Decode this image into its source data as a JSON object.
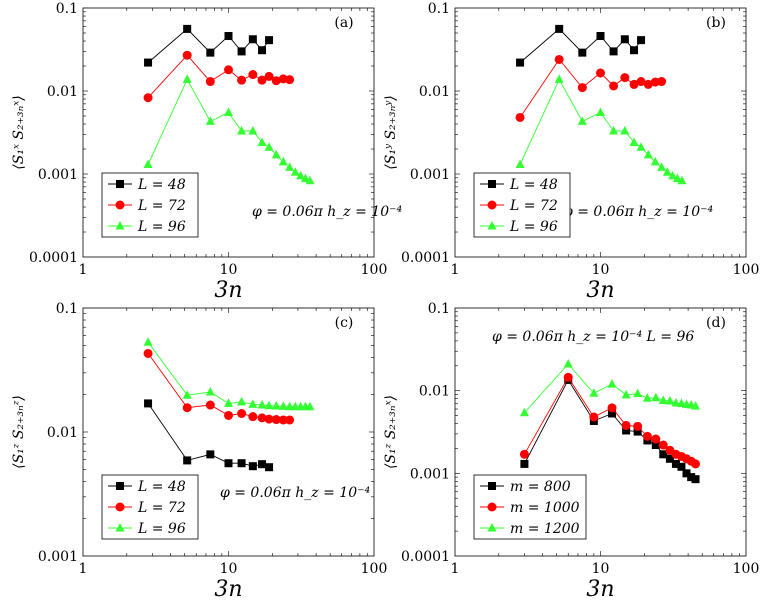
{
  "colors": {
    "black": "#000000",
    "red": "#ff0000",
    "green": "#33ff33"
  },
  "chart_data": [
    {
      "type": "line",
      "panel_label": "(a)",
      "xscale": "log",
      "yscale": "log",
      "xlim": [
        1,
        100
      ],
      "ylim": [
        0.0001,
        0.1
      ],
      "xlabel": "3n",
      "ylabel": "⟨S₁ˣ S₂₊₃ₙˣ⟩",
      "xticks": [
        "1",
        "10",
        "100"
      ],
      "yticks": [
        "0.0001",
        "0.001",
        "0.01",
        "0.1"
      ],
      "annotation": "φ = 0.06π  h_z = 10⁻⁴",
      "legend_position": "bottom-left",
      "series": [
        {
          "name": "L = 48",
          "marker": "square",
          "color": "black",
          "x": [
            2.8,
            5.2,
            7.5,
            10,
            12.3,
            14.7,
            17,
            19
          ],
          "y": [
            0.022,
            0.056,
            0.029,
            0.046,
            0.03,
            0.042,
            0.031,
            0.041
          ]
        },
        {
          "name": "L = 72",
          "marker": "circle",
          "color": "red",
          "x": [
            2.8,
            5.2,
            7.5,
            10,
            12.3,
            14.7,
            17,
            19,
            21.3,
            23.8,
            26.3
          ],
          "y": [
            0.0083,
            0.027,
            0.013,
            0.018,
            0.0135,
            0.0158,
            0.0135,
            0.015,
            0.0133,
            0.014,
            0.0137
          ]
        },
        {
          "name": "L = 96",
          "marker": "triangle",
          "color": "green",
          "x": [
            2.8,
            5.2,
            7.5,
            10,
            12.3,
            14.7,
            17,
            19,
            21.3,
            23.8,
            26.3,
            28.8,
            31.3,
            33.8,
            36.3
          ],
          "y": [
            0.0013,
            0.0138,
            0.0043,
            0.0055,
            0.0033,
            0.0033,
            0.0024,
            0.0021,
            0.0017,
            0.0014,
            0.0012,
            0.00105,
            0.00095,
            0.00088,
            0.00083
          ]
        }
      ]
    },
    {
      "type": "line",
      "panel_label": "(b)",
      "xscale": "log",
      "yscale": "log",
      "xlim": [
        1,
        100
      ],
      "ylim": [
        0.0001,
        0.1
      ],
      "xlabel": "3n",
      "ylabel": "⟨S₁ʸ S₂₊₃ₙʸ⟩",
      "xticks": [
        "1",
        "10",
        "100"
      ],
      "yticks": [
        "0.0001",
        "0.001",
        "0.01",
        "0.1"
      ],
      "annotation": "φ = 0.06π  h_z = 10⁻⁴",
      "legend_position": "bottom-left",
      "series": [
        {
          "name": "L = 48",
          "marker": "square",
          "color": "black",
          "x": [
            2.8,
            5.2,
            7.5,
            10,
            12.3,
            14.7,
            17,
            19
          ],
          "y": [
            0.022,
            0.056,
            0.029,
            0.046,
            0.03,
            0.042,
            0.031,
            0.041
          ]
        },
        {
          "name": "L = 72",
          "marker": "circle",
          "color": "red",
          "x": [
            2.8,
            5.2,
            7.5,
            10,
            12.3,
            14.7,
            17,
            19,
            21.3,
            23.8,
            26.3
          ],
          "y": [
            0.0048,
            0.024,
            0.011,
            0.0165,
            0.0115,
            0.0145,
            0.012,
            0.013,
            0.012,
            0.0128,
            0.013
          ]
        },
        {
          "name": "L = 96",
          "marker": "triangle",
          "color": "green",
          "x": [
            2.8,
            5.2,
            7.5,
            10,
            12.3,
            14.7,
            17,
            19,
            21.3,
            23.8,
            26.3,
            28.8,
            31.3,
            33.8,
            36.3
          ],
          "y": [
            0.0013,
            0.0138,
            0.0043,
            0.0055,
            0.0033,
            0.0033,
            0.0024,
            0.0021,
            0.0017,
            0.0014,
            0.0012,
            0.00105,
            0.00095,
            0.00088,
            0.00083
          ]
        }
      ]
    },
    {
      "type": "line",
      "panel_label": "(c)",
      "xscale": "log",
      "yscale": "log",
      "xlim": [
        1,
        100
      ],
      "ylim": [
        0.001,
        0.1
      ],
      "xlabel": "3n",
      "ylabel": "⟨S₁ᶻ S₂₊₃ₙᶻ⟩",
      "xticks": [
        "1",
        "10",
        "100"
      ],
      "yticks": [
        "0.001",
        "0.01",
        "0.1"
      ],
      "annotation": "φ = 0.06π  h_z = 10⁻⁴",
      "legend_position": "bottom-left",
      "series": [
        {
          "name": "L = 48",
          "marker": "square",
          "color": "black",
          "x": [
            2.8,
            5.2,
            7.5,
            10,
            12.3,
            14.7,
            17,
            19
          ],
          "y": [
            0.017,
            0.0059,
            0.0066,
            0.0056,
            0.0056,
            0.0053,
            0.0055,
            0.0052
          ]
        },
        {
          "name": "L = 72",
          "marker": "circle",
          "color": "red",
          "x": [
            2.8,
            5.2,
            7.5,
            10,
            12.3,
            14.7,
            17,
            19,
            21.3,
            23.8,
            26.3
          ],
          "y": [
            0.043,
            0.0157,
            0.0165,
            0.0136,
            0.0141,
            0.0133,
            0.013,
            0.0127,
            0.0126,
            0.0125,
            0.0125
          ]
        },
        {
          "name": "L = 96",
          "marker": "triangle",
          "color": "green",
          "x": [
            2.8,
            5.2,
            7.5,
            10,
            12.3,
            14.7,
            17,
            19,
            21.3,
            23.8,
            26.3,
            28.8,
            31.3,
            33.8,
            36.3
          ],
          "y": [
            0.053,
            0.0198,
            0.021,
            0.017,
            0.0175,
            0.0167,
            0.0165,
            0.0163,
            0.0162,
            0.0161,
            0.016,
            0.016,
            0.016,
            0.016,
            0.016
          ]
        }
      ]
    },
    {
      "type": "line",
      "panel_label": "(d)",
      "xscale": "log",
      "yscale": "log",
      "xlim": [
        1,
        100
      ],
      "ylim": [
        0.0001,
        0.1
      ],
      "xlabel": "3n",
      "ylabel": "⟨S₁ᶻ S₂₊₃ₙˣ⟩",
      "xticks": [
        "1",
        "10",
        "100"
      ],
      "yticks": [
        "0.0001",
        "0.001",
        "0.01",
        "0.1"
      ],
      "annotation": "φ = 0.06π  h_z = 10⁻⁴  L = 96",
      "legend_position": "bottom-left",
      "series": [
        {
          "name": "m = 800",
          "marker": "square",
          "color": "black",
          "x": [
            3,
            6,
            9,
            12,
            15,
            18,
            21,
            24,
            27,
            30,
            33,
            36,
            39,
            42,
            45
          ],
          "y": [
            0.0013,
            0.0135,
            0.0043,
            0.0053,
            0.0033,
            0.0032,
            0.0025,
            0.0022,
            0.0017,
            0.0015,
            0.0013,
            0.0012,
            0.001,
            0.0009,
            0.00085
          ]
        },
        {
          "name": "m = 1000",
          "marker": "circle",
          "color": "red",
          "x": [
            3,
            6,
            9,
            12,
            15,
            18,
            21,
            24,
            27,
            30,
            33,
            36,
            39,
            42,
            45
          ],
          "y": [
            0.0017,
            0.0145,
            0.0048,
            0.0062,
            0.0038,
            0.0037,
            0.0028,
            0.0026,
            0.0022,
            0.0019,
            0.0017,
            0.0016,
            0.0015,
            0.0014,
            0.0013
          ]
        },
        {
          "name": "m = 1200",
          "marker": "triangle",
          "color": "green",
          "x": [
            3,
            6,
            9,
            12,
            15,
            18,
            21,
            24,
            27,
            30,
            33,
            36,
            39,
            42,
            45
          ],
          "y": [
            0.0054,
            0.021,
            0.0093,
            0.012,
            0.0089,
            0.0092,
            0.0081,
            0.0082,
            0.0076,
            0.0075,
            0.0071,
            0.007,
            0.0068,
            0.0067,
            0.0065
          ]
        }
      ]
    }
  ]
}
